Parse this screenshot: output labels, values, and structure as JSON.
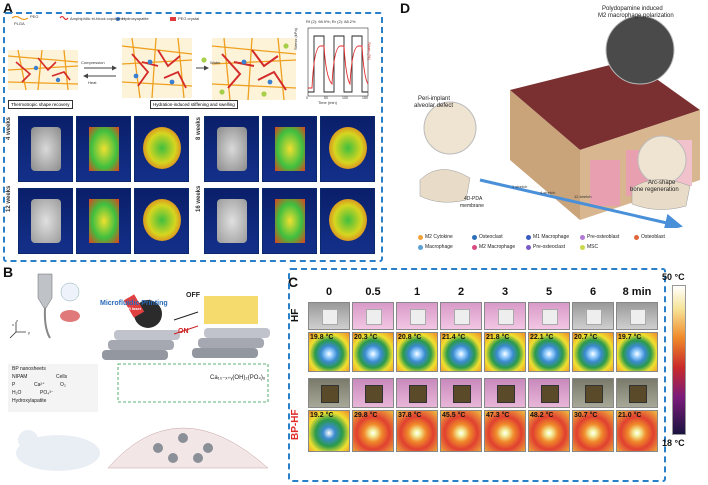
{
  "panelA": {
    "letter": "A",
    "legend": {
      "plga": "PLGA",
      "peg": "PEG",
      "copolymer": "Amphiphilic tri-block copolymer",
      "ha": "Hydroxyapatite",
      "crystal": "PEG crystal"
    },
    "steps": {
      "compression": "Compression",
      "heat": "Heat",
      "water": "Water"
    },
    "captions": [
      "Thermotropic shape recovery",
      "Hydration-induced stiffening and swelling"
    ],
    "chart": {
      "ratio_text": "Rf (2): 98.9%; Rr (2): 88.2%",
      "ylabel_left": "Stress (kPa)",
      "ylabel_right": "Strain (%)",
      "xlabel": "Time (min)",
      "xticks": [
        "0",
        "50",
        "100",
        "150"
      ],
      "yticks_left": [
        "0",
        "20",
        "40",
        "60"
      ],
      "yticks_right": [
        "-40",
        "-30",
        "-20",
        "-10",
        "0"
      ]
    },
    "weeks": [
      "4 weeks",
      "8 weeks",
      "12 weeks",
      "16 weeks"
    ]
  },
  "panelB": {
    "letter": "B",
    "microfluidic": "Microfluidic Printing",
    "nir": "NIR laser",
    "off": "OFF",
    "on": "ON",
    "axes": [
      "x",
      "y",
      "z"
    ],
    "legend": [
      "BP nanosheets",
      "NIPAM",
      "Cells",
      "P",
      "Ca²⁺",
      "O₂",
      "H₂O",
      "PO₄³⁻",
      "Hydroxylapatite"
    ],
    "formula": "Ca₁₀₋ₓ₊ᵧ(OH)₂(PO₄)₆"
  },
  "panelC": {
    "letter": "C",
    "times": [
      "0",
      "0.5",
      "1",
      "2",
      "3",
      "5",
      "6",
      "8 min"
    ],
    "row_labels": [
      "HF",
      "BP-HF"
    ],
    "hf_temps": [
      "19.8 °C",
      "20.3 °C",
      "20.8 °C",
      "21.4 °C",
      "21.8 °C",
      "22.1 °C",
      "20.7 °C",
      "19.7 °C"
    ],
    "bphf_temps": [
      "19.2 °C",
      "29.8 °C",
      "37.8 °C",
      "45.5 °C",
      "47.3 °C",
      "48.2 °C",
      "30.7 °C",
      "21.0 °C"
    ],
    "scale_max": "50 °C",
    "scale_min": "18 °C"
  },
  "panelD": {
    "letter": "D",
    "top_caption_1": "Polydopamine induced",
    "top_caption_2": "M2 macrophage polarization",
    "left_caption_1": "Peri-implant",
    "left_caption_2": "alveolar defect",
    "right_caption_1": "Arc-shape",
    "right_caption_2": "bone regeneration",
    "membrane_1": "4D-PDA",
    "membrane_2": "membrane",
    "stages": [
      "1 stretch",
      "4 stretch",
      "12 stretch"
    ],
    "legend": [
      {
        "label": "M2 Cytokine",
        "color": "#f2a23a"
      },
      {
        "label": "Osteoclast",
        "color": "#2c6fb8"
      },
      {
        "label": "M1 Macrophage",
        "color": "#3a5bbf"
      },
      {
        "label": "Pre-osteoblast",
        "color": "#b07ad6"
      },
      {
        "label": "Osteoblast",
        "color": "#e0673b"
      },
      {
        "label": "Macrophage",
        "color": "#5aa0d6"
      },
      {
        "label": "M2 Macrophage",
        "color": "#d94c82"
      },
      {
        "label": "Pre-osteoclast",
        "color": "#7b5cc4"
      },
      {
        "label": "MSC",
        "color": "#c9d94a"
      }
    ]
  }
}
